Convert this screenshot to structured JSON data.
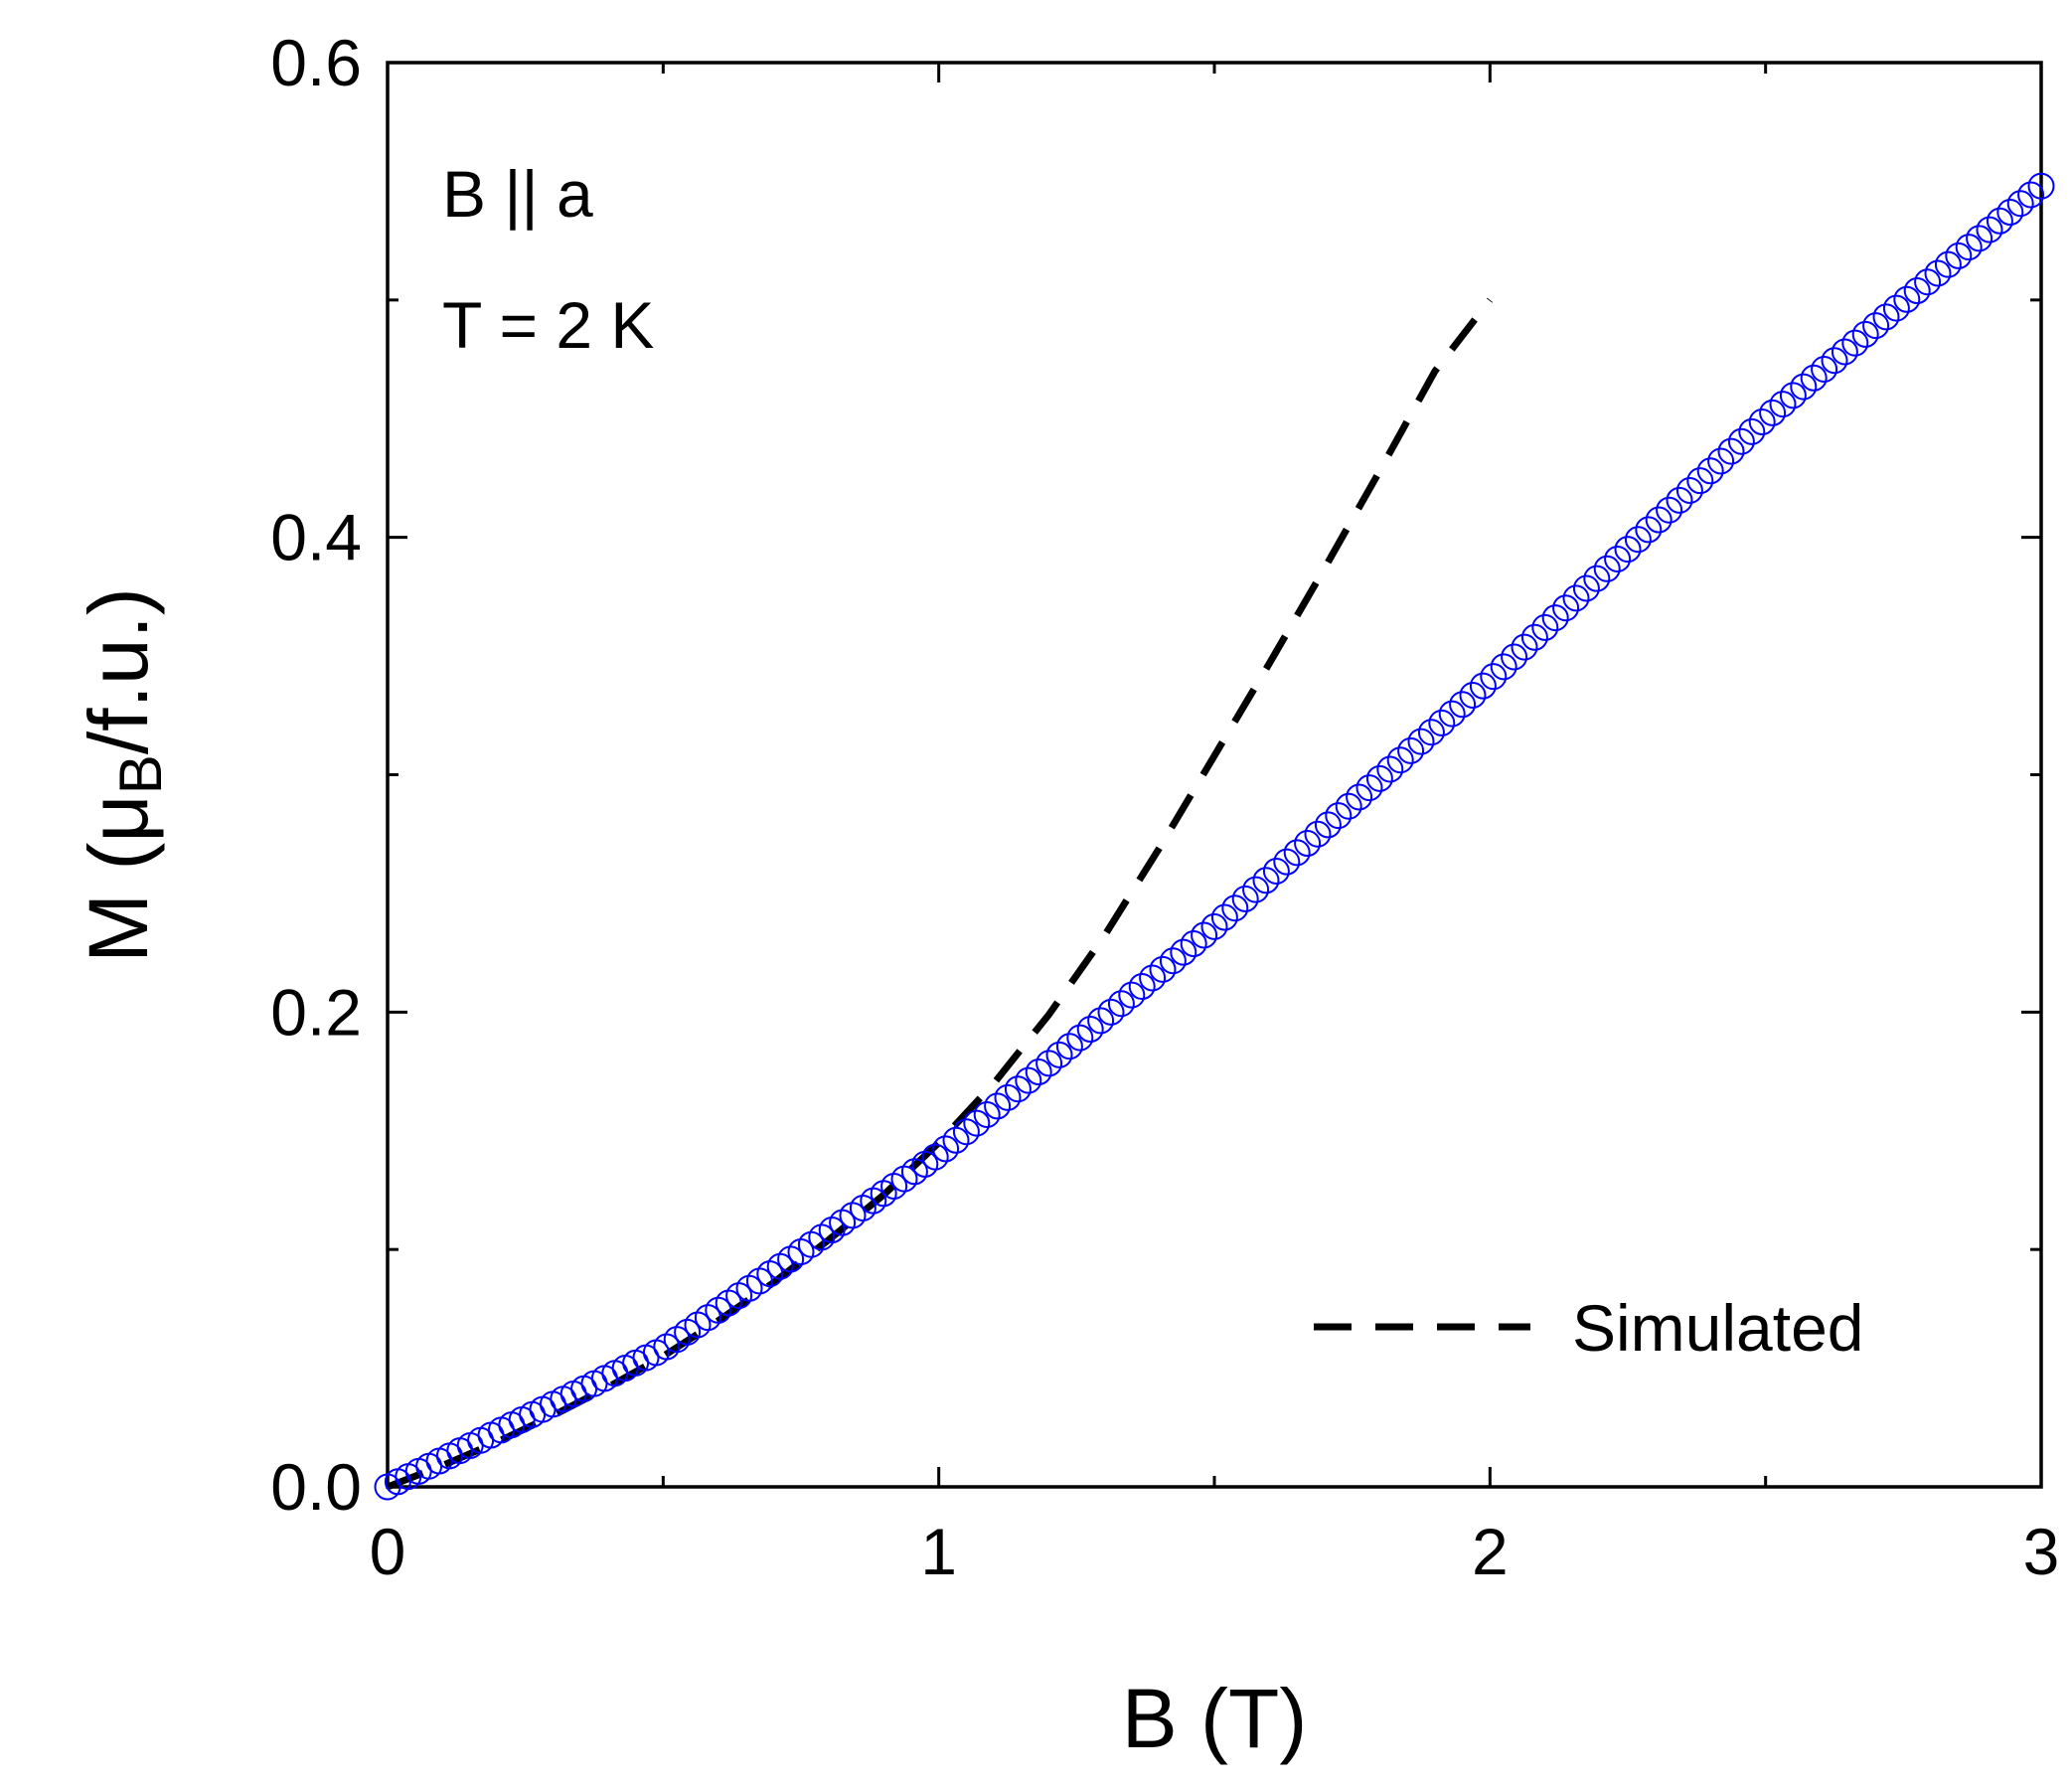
{
  "chart_data": {
    "type": "scatter",
    "xlabel": "B (T)",
    "ylabel": {
      "prefix": "M (μ",
      "subscript": "B",
      "suffix": "/f.u.)"
    },
    "xlim": [
      0,
      3
    ],
    "ylim": [
      0,
      0.6
    ],
    "x_ticks": [
      "0",
      "1",
      "2",
      "3"
    ],
    "x_tick_values": [
      0,
      1,
      2,
      3
    ],
    "y_ticks": [
      "0.0",
      "0.2",
      "0.4",
      "0.6"
    ],
    "y_tick_values": [
      0.0,
      0.2,
      0.4,
      0.6
    ],
    "grid": false,
    "annotations": [
      "B || a",
      "T = 2 K"
    ],
    "legend": {
      "position": "bottom-right"
    },
    "series": [
      {
        "kind": "measured",
        "marker": "open-circle",
        "color": "#0000ff",
        "x": [
          0,
          0.5,
          1.0,
          1.5,
          2.0,
          2.5,
          3.0
        ],
        "y": [
          0,
          0.058,
          0.14,
          0.236,
          0.34,
          0.45,
          0.548
        ]
      },
      {
        "name": "Simulated",
        "kind": "simulated",
        "line_style": "dashed",
        "color": "#000000",
        "x": [
          0,
          0.1,
          0.2,
          0.3,
          0.4,
          0.5,
          0.6,
          0.7,
          0.8,
          0.9,
          1.0,
          1.1,
          1.2,
          1.3,
          1.4,
          1.5,
          1.6,
          1.7,
          1.8,
          1.9,
          2.0
        ],
        "y": [
          0,
          0.009,
          0.019,
          0.03,
          0.042,
          0.055,
          0.07,
          0.086,
          0.104,
          0.123,
          0.145,
          0.17,
          0.199,
          0.232,
          0.269,
          0.308,
          0.347,
          0.387,
          0.428,
          0.47,
          0.5
        ]
      }
    ]
  }
}
